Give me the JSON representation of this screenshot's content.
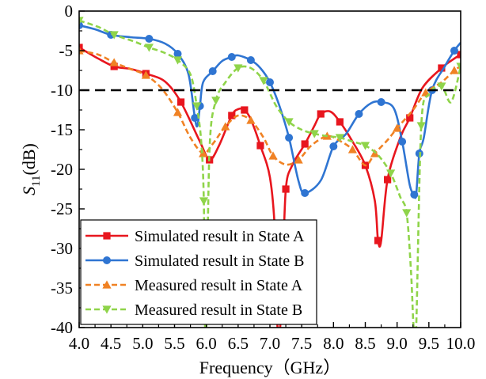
{
  "chart_data": {
    "type": "line",
    "xlabel": "Frequency（GHz）",
    "ylabel": "S11(dB)",
    "ylabel_main": "S",
    "ylabel_sub": "11",
    "ylabel_unit": "(dB)",
    "xlim": [
      4.0,
      10.0
    ],
    "ylim": [
      -40,
      0
    ],
    "xticks": [
      4.0,
      4.5,
      5.0,
      5.5,
      6.0,
      6.5,
      7.0,
      7.5,
      8.0,
      8.5,
      9.0,
      9.5,
      10.0
    ],
    "xtick_labels": [
      "4.0",
      "4.5",
      "5.0",
      "5.5",
      "6.0",
      "6.5",
      "7.0",
      "7.5",
      "8.0",
      "8.5",
      "9.0",
      "9.5",
      "10.0"
    ],
    "yticks": [
      0,
      -5,
      -10,
      -15,
      -20,
      -25,
      -30,
      -35,
      -40
    ],
    "ytick_labels": [
      "0",
      "-5",
      "-10",
      "-15",
      "-20",
      "-25",
      "-30",
      "-35",
      "-40"
    ],
    "grid": false,
    "reference_line": {
      "y": -10,
      "style": "dashed",
      "color": "#000000"
    },
    "legend_position": "bottom-left",
    "series": [
      {
        "name": "Simulated result in State A",
        "color": "#e8161e",
        "marker": "square",
        "line_style": "solid",
        "x": [
          4.0,
          4.3,
          4.55,
          4.8,
          5.05,
          5.35,
          5.6,
          5.9,
          6.05,
          6.2,
          6.4,
          6.5,
          6.6,
          6.7,
          6.85,
          7.0,
          7.08,
          7.12,
          7.16,
          7.2,
          7.25,
          7.35,
          7.55,
          7.7,
          7.8,
          7.95,
          8.1,
          8.3,
          8.5,
          8.65,
          8.7,
          8.75,
          8.85,
          9.05,
          9.2,
          9.4,
          9.7,
          9.9,
          10.0
        ],
        "y": [
          -4.6,
          -6.0,
          -7.0,
          -7.3,
          -7.9,
          -8.9,
          -11.5,
          -16.5,
          -18.8,
          -17.0,
          -13.2,
          -12.4,
          -12.5,
          -13.7,
          -17.0,
          -21.0,
          -28.0,
          -40.0,
          -40.0,
          -33.0,
          -22.5,
          -19.5,
          -16.8,
          -14.5,
          -13.0,
          -12.7,
          -14.0,
          -16.5,
          -19.5,
          -24.0,
          -29.0,
          -29.0,
          -21.3,
          -16.0,
          -13.5,
          -9.7,
          -7.2,
          -6.0,
          -5.5
        ]
      },
      {
        "name": "Simulated result in State B",
        "color": "#2f75d2",
        "marker": "circle",
        "line_style": "solid",
        "x": [
          4.0,
          4.25,
          4.5,
          4.8,
          5.1,
          5.35,
          5.55,
          5.72,
          5.82,
          5.86,
          5.9,
          5.95,
          6.1,
          6.25,
          6.4,
          6.5,
          6.7,
          6.85,
          7.0,
          7.15,
          7.3,
          7.45,
          7.55,
          7.8,
          8.0,
          8.2,
          8.4,
          8.6,
          8.75,
          8.95,
          9.08,
          9.2,
          9.27,
          9.3,
          9.35,
          9.42,
          9.55,
          9.75,
          9.9,
          10.0
        ],
        "y": [
          -1.8,
          -2.3,
          -3.0,
          -3.3,
          -3.5,
          -4.1,
          -5.4,
          -8.0,
          -13.5,
          -14.5,
          -12.0,
          -9.0,
          -7.6,
          -6.3,
          -5.8,
          -5.6,
          -6.2,
          -7.2,
          -9.0,
          -12.0,
          -16.0,
          -21.5,
          -23.0,
          -21.4,
          -17.1,
          -15.5,
          -13.0,
          -11.6,
          -11.5,
          -12.3,
          -16.5,
          -22.0,
          -23.2,
          -23.2,
          -18.0,
          -16.0,
          -10.0,
          -7.0,
          -5.0,
          -4.0
        ]
      },
      {
        "name": "Measured result in State A",
        "color": "#f08224",
        "marker": "triangle-up",
        "line_style": "dashed",
        "x": [
          4.0,
          4.3,
          4.55,
          4.8,
          5.05,
          5.3,
          5.55,
          5.75,
          5.95,
          6.1,
          6.3,
          6.5,
          6.7,
          6.9,
          7.05,
          7.25,
          7.45,
          7.65,
          7.9,
          8.1,
          8.3,
          8.5,
          8.65,
          8.85,
          9.0,
          9.25,
          9.45,
          9.7,
          9.9,
          10.0
        ],
        "y": [
          -5.0,
          -5.5,
          -6.5,
          -7.3,
          -8.1,
          -9.8,
          -12.8,
          -16.0,
          -18.0,
          -16.8,
          -14.6,
          -13.2,
          -13.8,
          -16.0,
          -18.3,
          -19.4,
          -18.8,
          -17.0,
          -15.8,
          -16.4,
          -17.5,
          -19.5,
          -18.0,
          -16.3,
          -14.8,
          -12.5,
          -10.3,
          -9.0,
          -7.5,
          -7.0
        ]
      },
      {
        "name": "Measured result in State B",
        "color": "#8fd44a",
        "marker": "triangle-down",
        "line_style": "dashed",
        "x": [
          4.0,
          4.3,
          4.55,
          4.85,
          5.1,
          5.35,
          5.55,
          5.75,
          5.85,
          5.92,
          5.96,
          5.98,
          6.0,
          6.05,
          6.15,
          6.3,
          6.5,
          6.7,
          6.9,
          7.1,
          7.3,
          7.5,
          7.7,
          7.9,
          8.1,
          8.3,
          8.5,
          8.7,
          8.9,
          9.05,
          9.15,
          9.22,
          9.26,
          9.3,
          9.38,
          9.5,
          9.7,
          9.85,
          10.0
        ],
        "y": [
          -1.2,
          -2.0,
          -3.0,
          -3.8,
          -4.6,
          -5.3,
          -6.2,
          -8.0,
          -12.0,
          -16.5,
          -24.0,
          -40.0,
          -40.0,
          -17.5,
          -11.3,
          -9.0,
          -7.2,
          -7.2,
          -8.8,
          -12.0,
          -14.0,
          -15.0,
          -15.5,
          -15.8,
          -16.0,
          -16.5,
          -17.0,
          -18.2,
          -20.5,
          -23.5,
          -25.5,
          -33.0,
          -40.0,
          -40.0,
          -14.5,
          -10.5,
          -9.5,
          -11.5,
          -7.0
        ]
      }
    ]
  }
}
